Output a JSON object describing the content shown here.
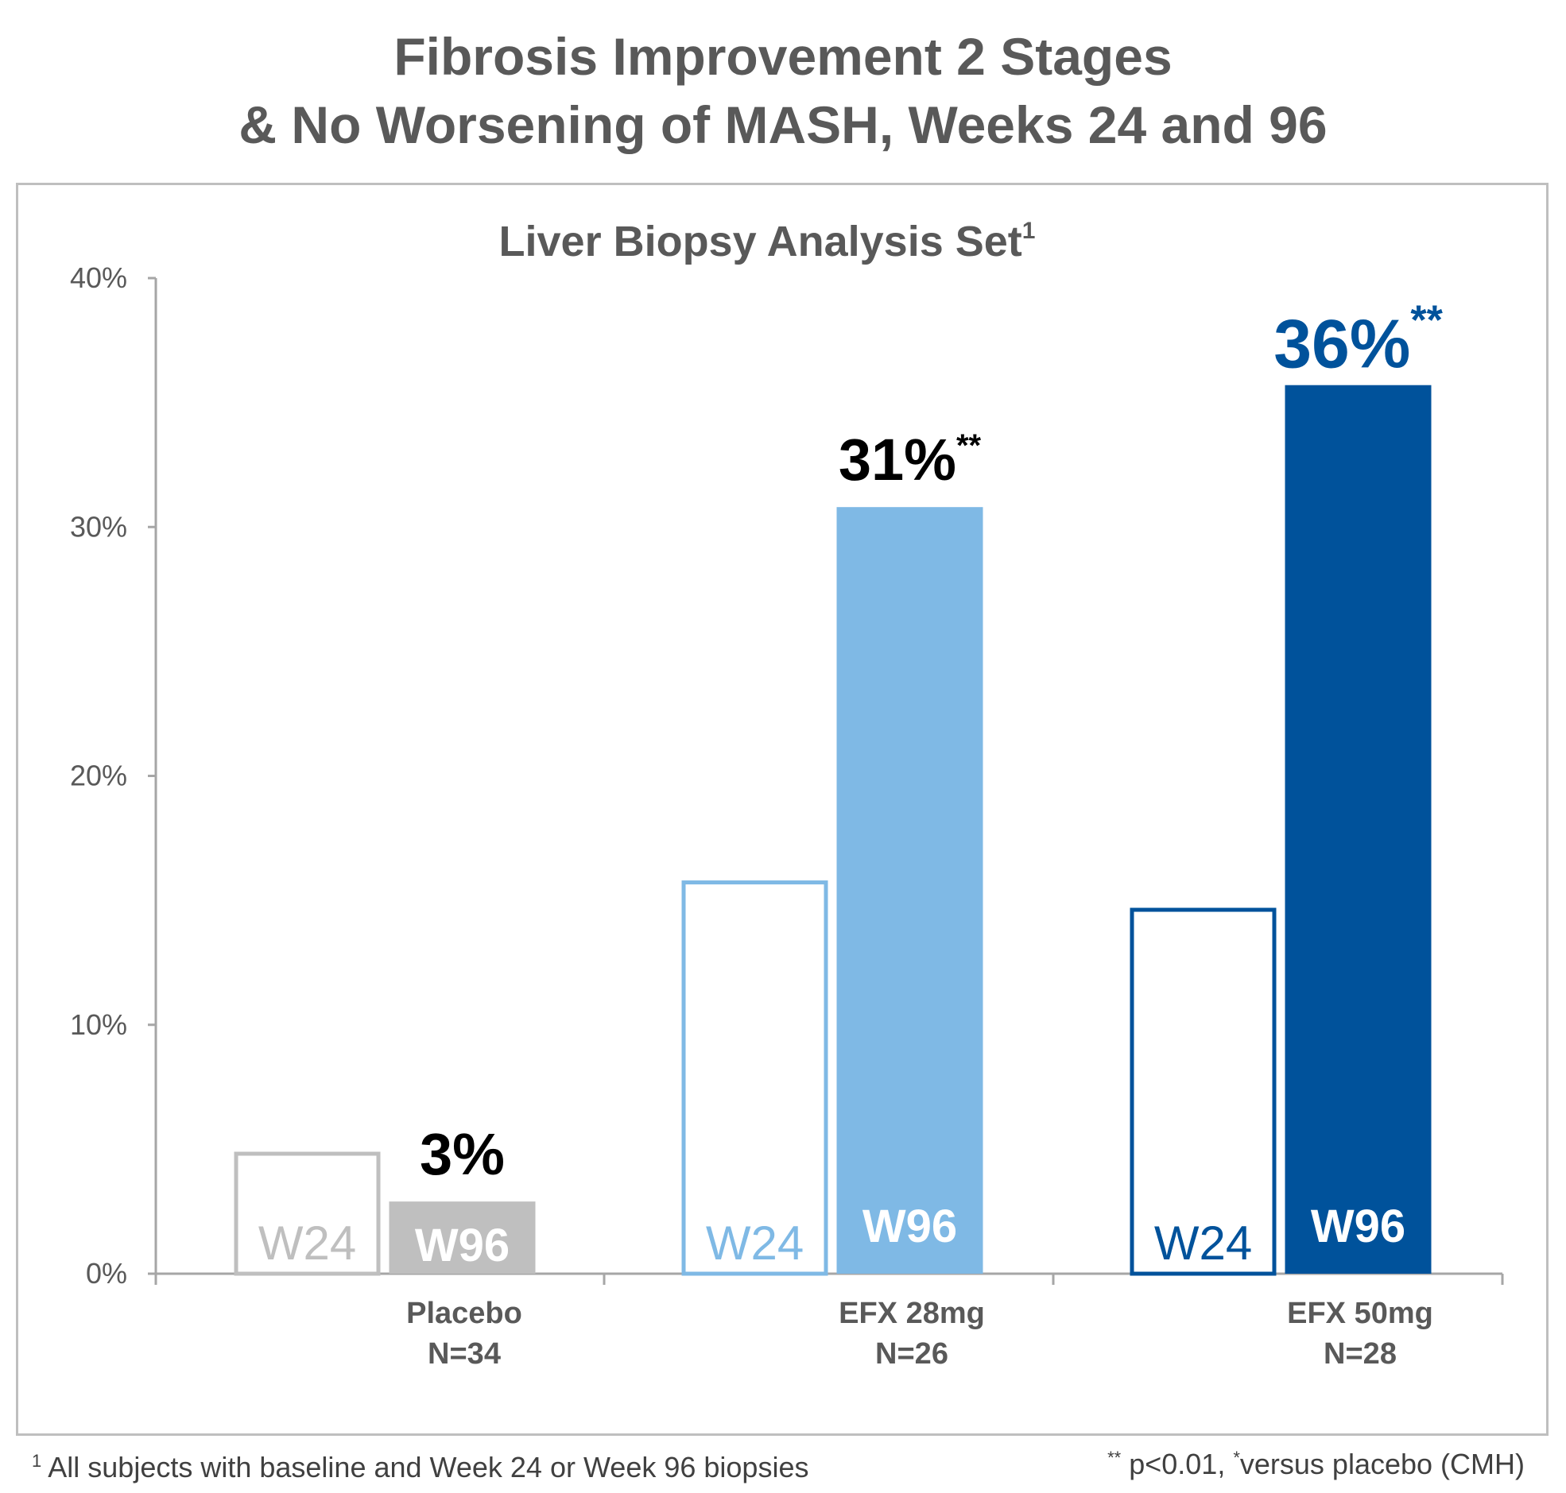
{
  "title": {
    "line1": "Fibrosis Improvement 2 Stages",
    "line2": "& No Worsening of MASH, Weeks 24 and 96"
  },
  "colors": {
    "text": "#595959",
    "axis": "#a6a6a6",
    "placebo": "#bfbfbf",
    "efx28": "#7fb9e5",
    "efx50": "#00529b",
    "frame": "#bfbfbf"
  },
  "chart_data": {
    "type": "bar",
    "title": "Liver Biopsy Analysis Set",
    "title_superscript": "1",
    "xlabel": "",
    "ylabel": "",
    "ylim": [
      0,
      40
    ],
    "yticks": [
      0,
      10,
      20,
      30,
      40
    ],
    "ytick_labels": [
      "0%",
      "10%",
      "20%",
      "30%",
      "40%"
    ],
    "grid": false,
    "categories": [
      {
        "name": "Placebo",
        "n": "N=34"
      },
      {
        "name": "EFX 28mg",
        "n": "N=26"
      },
      {
        "name": "EFX 50mg",
        "n": "N=28"
      }
    ],
    "series": [
      {
        "name": "W24",
        "label": "W24",
        "style": "outline",
        "values": [
          4.9,
          15.8,
          14.7
        ]
      },
      {
        "name": "W96",
        "label": "W96",
        "style": "filled",
        "values": [
          2.9,
          30.8,
          35.7
        ]
      }
    ],
    "value_labels": [
      {
        "category": "Placebo",
        "series": "W96",
        "text": "3%",
        "significance": ""
      },
      {
        "category": "EFX 28mg",
        "series": "W96",
        "text": "31%",
        "significance": "**"
      },
      {
        "category": "EFX 50mg",
        "series": "W96",
        "text": "36%",
        "significance": "**"
      }
    ]
  },
  "footnotes": {
    "left_marker": "1",
    "left_text": "All subjects with baseline and Week 24 or Week 96 biopsies",
    "right_marker1": "**",
    "right_text1": "p<0.01, ",
    "right_marker2": "*",
    "right_text2": "versus placebo (CMH)"
  }
}
